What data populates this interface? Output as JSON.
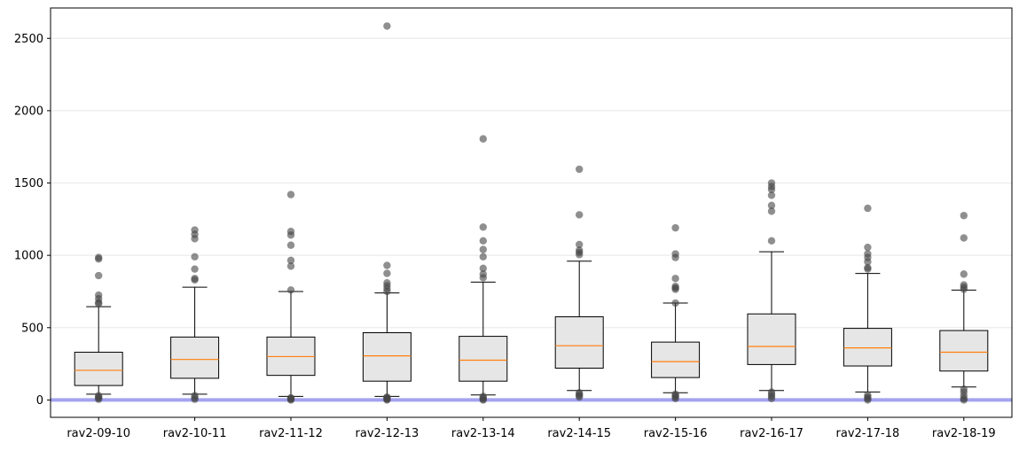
{
  "chart_data": {
    "type": "box",
    "title": "",
    "xlabel": "",
    "ylabel": "",
    "ylim": [
      -120,
      2710
    ],
    "yticks": [
      0,
      500,
      1000,
      1500,
      2000,
      2500
    ],
    "grid": "horizontal",
    "reference_line": {
      "y": 0,
      "color": "#a3a3f0"
    },
    "colors": {
      "box_fill": "#e6e6e6",
      "box_edge": "#000000",
      "median": "#ff7f0e",
      "outlier": "#808080"
    },
    "categories": [
      "rav2-09-10",
      "rav2-10-11",
      "rav2-11-12",
      "rav2-12-13",
      "rav2-13-14",
      "rav2-14-15",
      "rav2-15-16",
      "rav2-16-17",
      "rav2-17-18",
      "rav2-18-19"
    ],
    "boxes": [
      {
        "whisker_low": 40,
        "q1": 100,
        "median": 205,
        "q3": 330,
        "whisker_high": 645,
        "outliers": [
          5,
          12,
          20,
          30,
          665,
          675,
          700,
          725,
          860,
          975,
          985
        ]
      },
      {
        "whisker_low": 40,
        "q1": 150,
        "median": 280,
        "q3": 435,
        "whisker_high": 780,
        "outliers": [
          5,
          15,
          30,
          830,
          840,
          905,
          990,
          1115,
          1145,
          1175
        ]
      },
      {
        "whisker_low": 25,
        "q1": 170,
        "median": 300,
        "q3": 435,
        "whisker_high": 750,
        "outliers": [
          0,
          5,
          10,
          15,
          760,
          925,
          965,
          1070,
          1140,
          1165,
          1420
        ]
      },
      {
        "whisker_low": 25,
        "q1": 130,
        "median": 305,
        "q3": 465,
        "whisker_high": 740,
        "outliers": [
          0,
          5,
          10,
          15,
          20,
          750,
          770,
          790,
          810,
          875,
          930,
          2585
        ]
      },
      {
        "whisker_low": 35,
        "q1": 130,
        "median": 275,
        "q3": 440,
        "whisker_high": 815,
        "outliers": [
          0,
          5,
          15,
          25,
          845,
          870,
          910,
          990,
          1040,
          1100,
          1195,
          1805
        ]
      },
      {
        "whisker_low": 65,
        "q1": 220,
        "median": 375,
        "q3": 575,
        "whisker_high": 960,
        "outliers": [
          20,
          30,
          40,
          50,
          1005,
          1020,
          1035,
          1075,
          1280,
          1595
        ]
      },
      {
        "whisker_low": 50,
        "q1": 155,
        "median": 265,
        "q3": 400,
        "whisker_high": 670,
        "outliers": [
          10,
          20,
          30,
          40,
          670,
          765,
          775,
          785,
          840,
          985,
          1010,
          1190
        ]
      },
      {
        "whisker_low": 65,
        "q1": 245,
        "median": 370,
        "q3": 595,
        "whisker_high": 1025,
        "outliers": [
          10,
          25,
          40,
          55,
          1100,
          1305,
          1345,
          1415,
          1455,
          1475,
          1500
        ]
      },
      {
        "whisker_low": 55,
        "q1": 235,
        "median": 360,
        "q3": 495,
        "whisker_high": 875,
        "outliers": [
          0,
          10,
          20,
          35,
          905,
          915,
          955,
          985,
          1010,
          1055,
          1325
        ]
      },
      {
        "whisker_low": 90,
        "q1": 200,
        "median": 330,
        "q3": 480,
        "whisker_high": 760,
        "outliers": [
          0,
          10,
          30,
          55,
          75,
          765,
          780,
          795,
          870,
          1120,
          1275
        ]
      }
    ]
  }
}
